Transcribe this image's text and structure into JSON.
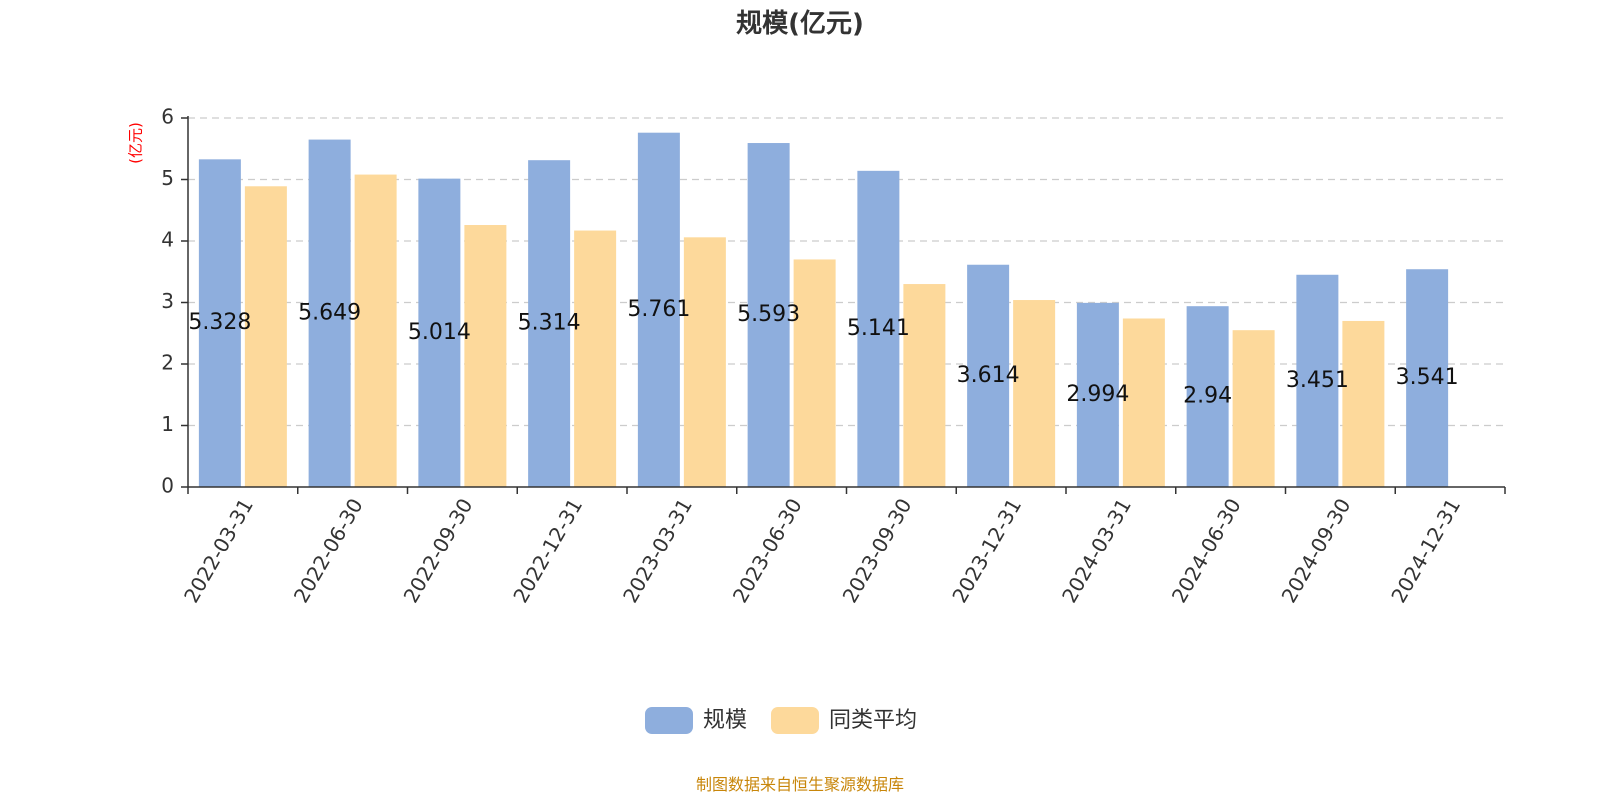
{
  "title": "规模(亿元)",
  "unit_label": "(亿元)",
  "source": "制图数据来自恒生聚源数据库",
  "colors": {
    "series1": "#8eaedd",
    "series2": "#fdd99b",
    "unit": "#ff0000",
    "source": "#c8860a",
    "grid": "#cccccc",
    "axis": "#333333"
  },
  "chart_data": {
    "type": "bar",
    "title": "规模(亿元)",
    "ylabel": "(亿元)",
    "ylim": [
      0,
      6
    ],
    "yticks": [
      0,
      1,
      2,
      3,
      4,
      5,
      6
    ],
    "grid": true,
    "legend_position": "bottom-center",
    "categories": [
      "2022-03-31",
      "2022-06-30",
      "2022-09-30",
      "2022-12-31",
      "2023-03-31",
      "2023-06-30",
      "2023-09-30",
      "2023-12-31",
      "2024-03-31",
      "2024-06-30",
      "2024-09-30",
      "2024-12-31"
    ],
    "series": [
      {
        "name": "规模",
        "values": [
          5.328,
          5.649,
          5.014,
          5.314,
          5.761,
          5.593,
          5.141,
          3.614,
          2.994,
          2.94,
          3.451,
          3.541
        ],
        "labels": [
          "5.328",
          "5.649",
          "5.014",
          "5.314",
          "5.761",
          "5.593",
          "5.141",
          "3.614",
          "2.994",
          "2.94",
          "3.451",
          "3.541"
        ]
      },
      {
        "name": "同类平均",
        "values": [
          4.89,
          5.08,
          4.26,
          4.17,
          4.06,
          3.7,
          3.3,
          3.04,
          2.74,
          2.55,
          2.7,
          null
        ]
      }
    ]
  }
}
